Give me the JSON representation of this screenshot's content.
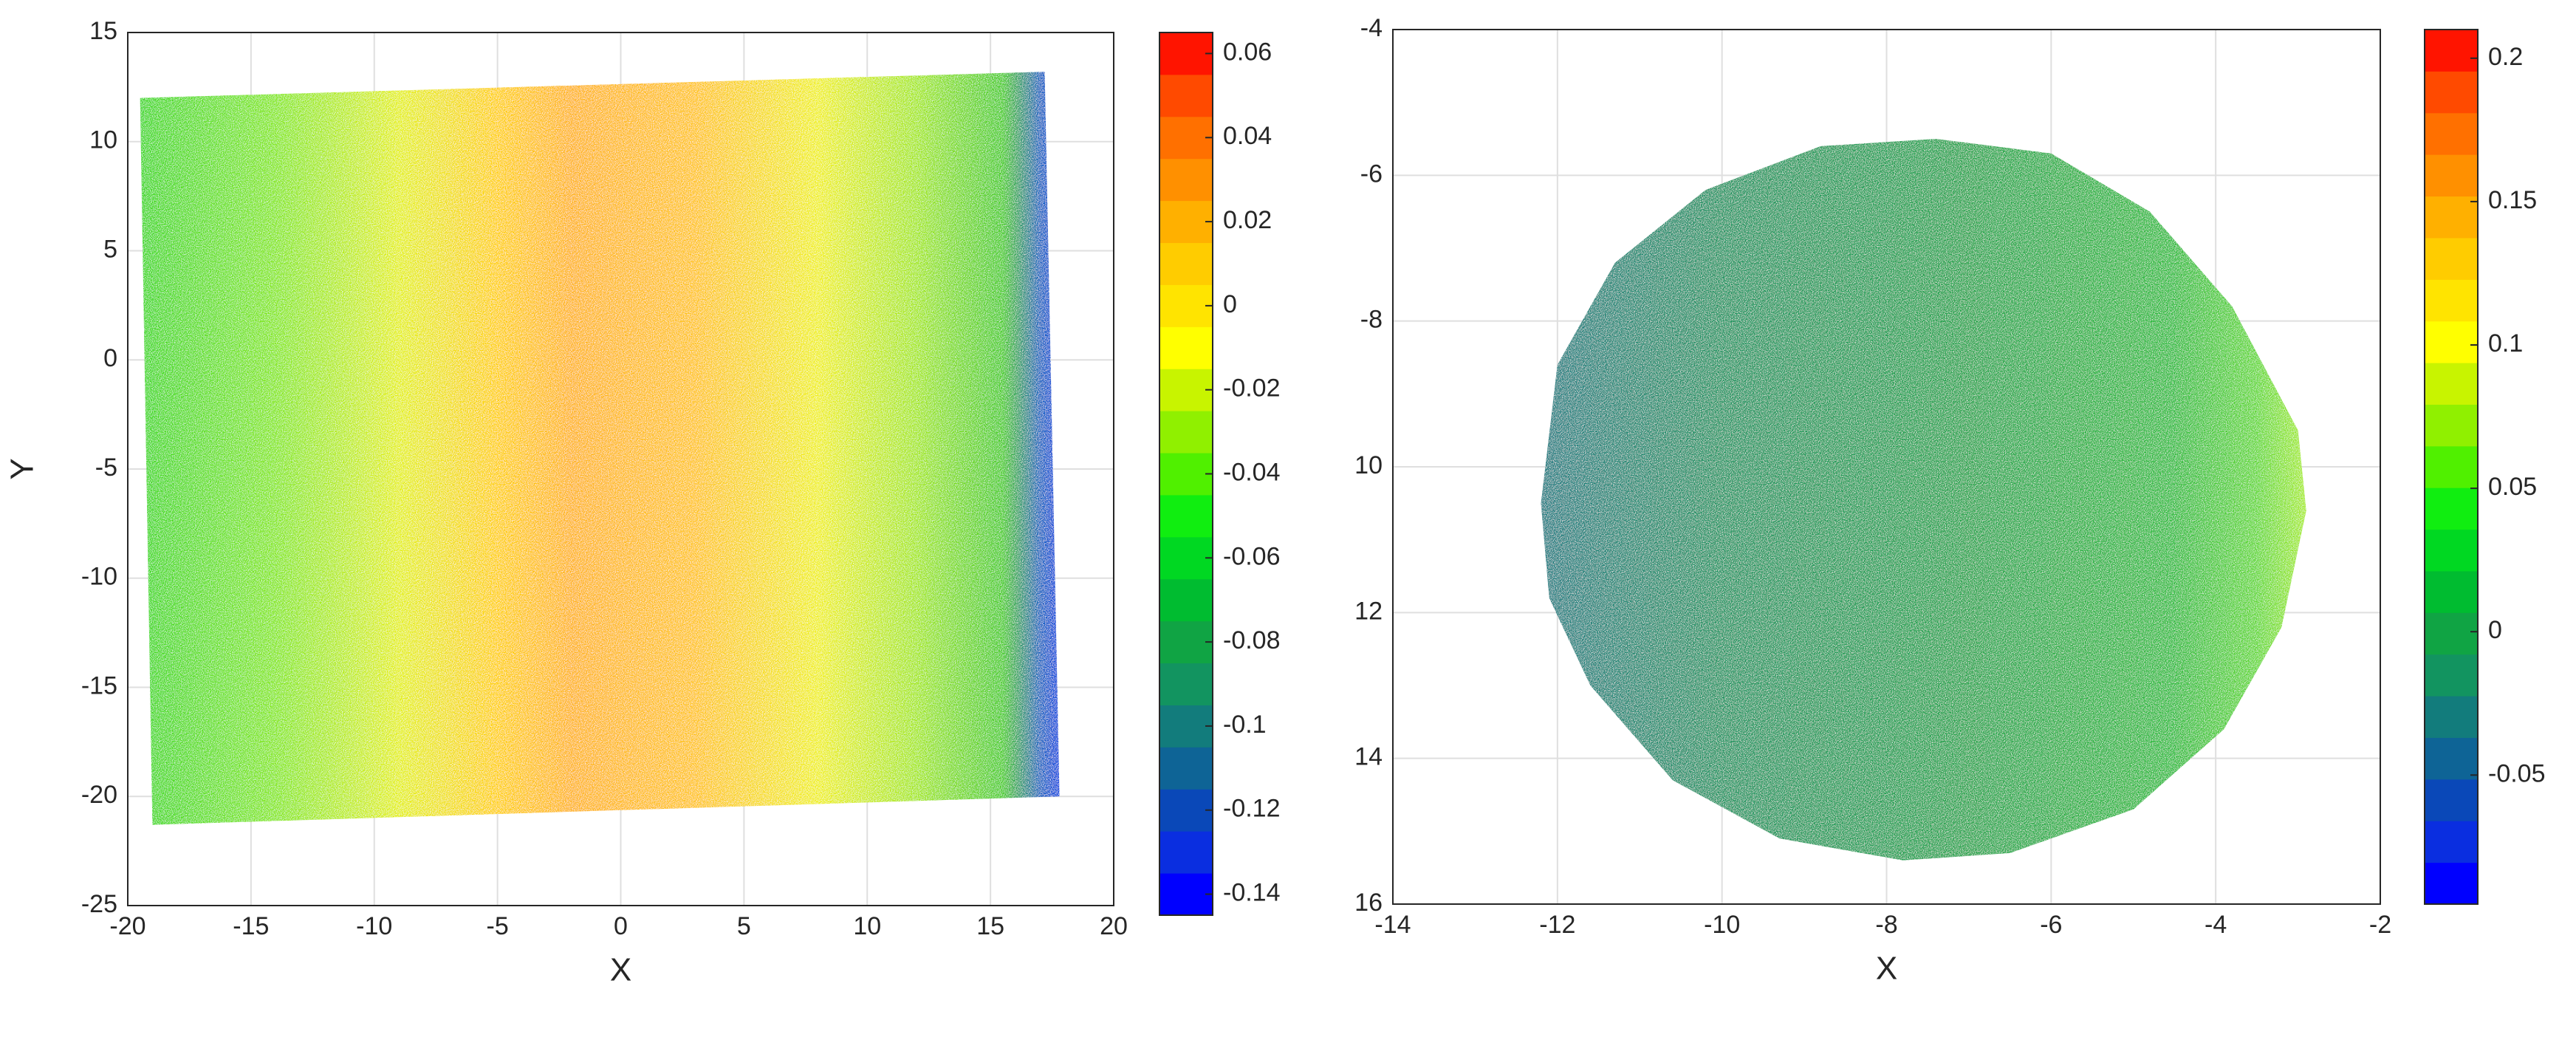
{
  "chart_data": [
    {
      "type": "scatter",
      "xlabel": "X",
      "ylabel": "Y",
      "x": [
        -19.5,
        17.2,
        17.8,
        -19.0
      ],
      "y": [
        12.0,
        13.2,
        -20.0,
        -21.3
      ],
      "fill_gradient": [
        {
          "x": -19.5,
          "color": "#3cd820"
        },
        {
          "x": -14,
          "color": "#84e818"
        },
        {
          "x": -9,
          "color": "#e4f010"
        },
        {
          "x": -5,
          "color": "#ffd000"
        },
        {
          "x": -2,
          "color": "#ffb414"
        },
        {
          "x": 3,
          "color": "#ffc414"
        },
        {
          "x": 8,
          "color": "#f0f012"
        },
        {
          "x": 12,
          "color": "#a4e818"
        },
        {
          "x": 15.5,
          "color": "#44cc22"
        },
        {
          "x": 17,
          "color": "#1464c0"
        },
        {
          "x": 17.8,
          "color": "#0040e0"
        }
      ],
      "xlim": [
        -20,
        20
      ],
      "xticks": [
        -20,
        -15,
        -10,
        -5,
        0,
        5,
        10,
        15,
        20
      ],
      "ylim": [
        -25,
        15
      ],
      "yticks": [
        -25,
        -20,
        -15,
        -10,
        -5,
        0,
        5,
        10,
        15
      ],
      "grid": true,
      "colorbar": {
        "lim": [
          -0.145,
          0.065
        ],
        "ticks": [
          -0.14,
          -0.12,
          -0.1,
          -0.08,
          -0.06,
          -0.04,
          -0.02,
          0,
          0.02,
          0.04,
          0.06
        ],
        "colors": [
          "#0000ff",
          "#0a2ee0",
          "#0a48b8",
          "#0e6496",
          "#127c7c",
          "#129460",
          "#10a444",
          "#00bc30",
          "#00d822",
          "#10ee10",
          "#50f000",
          "#90f000",
          "#c8f400",
          "#ffff00",
          "#ffe400",
          "#ffcc00",
          "#ffb000",
          "#ff9000",
          "#ff7000",
          "#ff4a00",
          "#ff1400"
        ]
      }
    },
    {
      "type": "scatter",
      "xlabel": "X",
      "x": [
        -12.2,
        -12.0,
        -11.3,
        -10.2,
        -8.8,
        -7.4,
        -6.0,
        -4.8,
        -3.8,
        -3.0,
        -2.9,
        -3.2,
        -3.9,
        -5.0,
        -6.5,
        -7.8,
        -9.3,
        -10.6,
        -11.6,
        -12.1
      ],
      "y": [
        -10.5,
        -8.6,
        -7.2,
        -6.2,
        -5.6,
        -5.5,
        -5.7,
        -6.5,
        -7.8,
        -9.5,
        -10.6,
        -12.2,
        -13.6,
        -14.7,
        -15.3,
        -15.4,
        -15.1,
        -14.3,
        -13.0,
        -11.8
      ],
      "fill_gradient": [
        {
          "x": -12.2,
          "color": "#1a7c82"
        },
        {
          "x": -10,
          "color": "#1c9460"
        },
        {
          "x": -7,
          "color": "#20a44a"
        },
        {
          "x": -4.5,
          "color": "#2cbc3a"
        },
        {
          "x": -3.5,
          "color": "#60d830"
        },
        {
          "x": -2.9,
          "color": "#a8ec28"
        }
      ],
      "xlim": [
        -14,
        -2
      ],
      "xticks": [
        -14,
        -12,
        -10,
        -8,
        -6,
        -4,
        -2
      ],
      "ylim": [
        -16,
        -4
      ],
      "yticks": [
        -4,
        -6,
        -8,
        {
          "value": -10,
          "label": "10"
        },
        {
          "value": -12,
          "label": "12"
        },
        {
          "value": -14,
          "label": "14"
        },
        {
          "value": -16,
          "label": "16"
        }
      ],
      "grid": true,
      "colorbar": {
        "lim": [
          -0.095,
          0.21
        ],
        "ticks": [
          -0.05,
          0,
          0.05,
          0.1,
          0.15,
          0.2
        ],
        "colors": [
          "#0000ff",
          "#0a2ee0",
          "#0a48b8",
          "#0e6496",
          "#127c7c",
          "#129460",
          "#10a444",
          "#00bc30",
          "#00d822",
          "#10ee10",
          "#50f000",
          "#90f000",
          "#c8f400",
          "#ffff00",
          "#ffe400",
          "#ffcc00",
          "#ffb000",
          "#ff9000",
          "#ff7000",
          "#ff4a00",
          "#ff1400"
        ]
      }
    }
  ]
}
